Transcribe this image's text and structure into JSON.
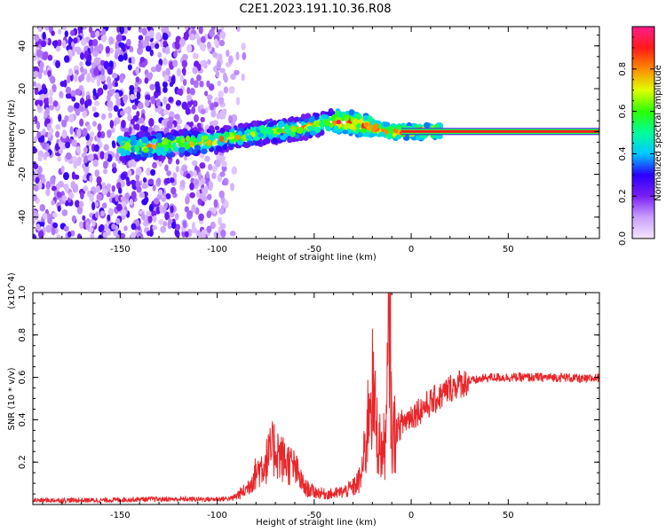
{
  "title": "C2E1.2023.191.10.36.R08",
  "chart_data": [
    {
      "type": "heatmap",
      "xlabel": "Height of straight line (km)",
      "ylabel": "Frequency (Hz)",
      "xlim": [
        -195,
        97
      ],
      "ylim": [
        -50,
        49
      ],
      "xticks": [
        -150,
        -100,
        -50,
        0,
        50
      ],
      "yticks": [
        -40,
        -20,
        0,
        20,
        40
      ],
      "colorbar": {
        "label": "Normalized spectral amplitude",
        "range": [
          0,
          1
        ],
        "ticks": [
          0.0,
          0.2,
          0.4,
          0.6,
          0.8
        ],
        "colors": [
          "#f4e6ff",
          "#c9a0ff",
          "#7a1ff2",
          "#2a00ff",
          "#00c8ff",
          "#00ff9a",
          "#2cff00",
          "#e0ff00",
          "#ff8a00",
          "#ff1a1a",
          "#ff1d8c"
        ]
      },
      "features": [
        {
          "name": "noise",
          "x_range": [
            -195,
            -95
          ],
          "y_range": [
            -50,
            49
          ],
          "amplitude": [
            0.05,
            0.3
          ]
        },
        {
          "name": "trace",
          "points": [
            [
              -140,
              -7
            ],
            [
              -120,
              -6
            ],
            [
              -100,
              -4
            ],
            [
              -80,
              -1
            ],
            [
              -60,
              1
            ],
            [
              -40,
              5
            ],
            [
              -30,
              4
            ],
            [
              -20,
              2
            ],
            [
              -10,
              0
            ],
            [
              0,
              0
            ],
            [
              15,
              0
            ],
            [
              97,
              0
            ]
          ],
          "amplitude": [
            0.2,
            0.95
          ]
        },
        {
          "name": "stable-line",
          "x_range": [
            5,
            97
          ],
          "y": 0,
          "amplitude": 0.9
        }
      ]
    },
    {
      "type": "line",
      "xlabel": "Height of straight line (km)",
      "ylabel": "SNR (10 * v/v)",
      "y_multiplier": "(x10^4)",
      "xlim": [
        -195,
        97
      ],
      "ylim": [
        0,
        1.0
      ],
      "xticks": [
        -150,
        -100,
        -50,
        0,
        50
      ],
      "yticks": [
        0.2,
        0.4,
        0.6,
        0.8,
        1.0
      ],
      "series": [
        {
          "color": "#e8262a",
          "x": [
            -195,
            -180,
            -160,
            -140,
            -120,
            -100,
            -92,
            -85,
            -80,
            -75,
            -72,
            -70,
            -67,
            -64,
            -60,
            -55,
            -50,
            -45,
            -40,
            -35,
            -30,
            -26,
            -23,
            -21,
            -19,
            -17,
            -15,
            -13,
            -12,
            -11,
            -10,
            -8,
            -5,
            0,
            5,
            10,
            15,
            20,
            25,
            30,
            35,
            40,
            50,
            60,
            70,
            80,
            90,
            97
          ],
          "y": [
            0.02,
            0.02,
            0.02,
            0.025,
            0.025,
            0.025,
            0.03,
            0.07,
            0.15,
            0.2,
            0.25,
            0.27,
            0.22,
            0.2,
            0.17,
            0.08,
            0.06,
            0.05,
            0.05,
            0.06,
            0.08,
            0.12,
            0.3,
            0.6,
            0.45,
            0.3,
            0.25,
            0.3,
            0.6,
            1.0,
            0.3,
            0.35,
            0.38,
            0.42,
            0.45,
            0.48,
            0.51,
            0.55,
            0.57,
            0.58,
            0.59,
            0.6,
            0.6,
            0.6,
            0.6,
            0.6,
            0.59,
            0.6
          ]
        }
      ]
    }
  ]
}
